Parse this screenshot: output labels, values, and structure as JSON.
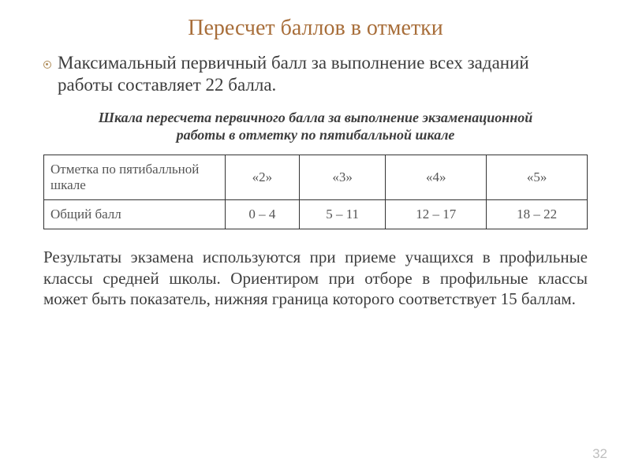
{
  "title": "Пересчет баллов в отметки",
  "paragraph1_pre": "",
  "paragraph1": "Максимальный первичный балл за выполнение всех заданий работы составляет 22 балла.",
  "subtitle": "Шкала пересчета первичного балла за выполнение экзаменационной работы в отметку по  пятибалльной шкале",
  "table": {
    "row1_label": "Отметка по пятибалльной шкале",
    "row1": [
      "«2»",
      "«3»",
      "«4»",
      "«5»"
    ],
    "row2_label": "Общий балл",
    "row2": [
      "0 – 4",
      "5 – 11",
      "12 – 17",
      "18 – 22"
    ],
    "border_color": "#333333",
    "text_color": "#555555",
    "fontsize": 17
  },
  "paragraph2": "Результаты экзамена используются при приеме учащихся в профильные классы средней школы. Ориентиром при отборе в профильные классы может быть показатель, нижняя граница которого соответствует 15 баллам.",
  "page_number": "32",
  "colors": {
    "title": "#a86e3a",
    "body_text": "#3d3d3d",
    "page_number": "#bfbfbf",
    "background": "#ffffff",
    "bullet_border": "#b08d5a"
  },
  "fonts": {
    "title_size": 28,
    "paragraph_size": 23,
    "subtitle_size": 18,
    "bottom_paragraph_size": 21
  }
}
